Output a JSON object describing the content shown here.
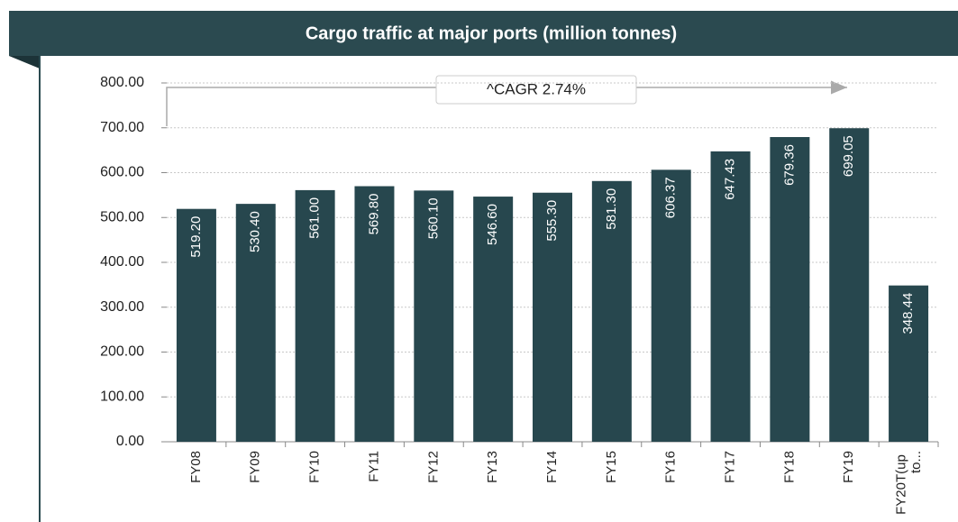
{
  "chart_data": {
    "type": "bar",
    "title": "Cargo traffic at major ports (million tonnes)",
    "annotation": "^CAGR 2.74%",
    "categories": [
      "FY08",
      "FY09",
      "FY10",
      "FY11",
      "FY12",
      "FY13",
      "FY14",
      "FY15",
      "FY16",
      "FY17",
      "FY18",
      "FY19",
      "FY20T(up to..."
    ],
    "values": [
      519.2,
      530.4,
      561.0,
      569.8,
      560.1,
      546.6,
      555.3,
      581.3,
      606.37,
      647.43,
      679.36,
      699.05,
      348.44
    ],
    "value_labels": [
      "519.20",
      "530.40",
      "561.00",
      "569.80",
      "560.10",
      "546.60",
      "555.30",
      "581.30",
      "606.37",
      "647.43",
      "679.36",
      "699.05",
      "348.44"
    ],
    "color": "#27474e",
    "ylim": [
      0,
      800
    ],
    "yticks": [
      {
        "value": 0,
        "label": "0.00"
      },
      {
        "value": 100,
        "label": "100.00"
      },
      {
        "value": 200,
        "label": "200.00"
      },
      {
        "value": 300,
        "label": "300.00"
      },
      {
        "value": 400,
        "label": "400.00"
      },
      {
        "value": 500,
        "label": "500.00"
      },
      {
        "value": 600,
        "label": "600.00"
      },
      {
        "value": 700,
        "label": "700.00"
      },
      {
        "value": 800,
        "label": "800.00"
      }
    ],
    "grid": true
  }
}
